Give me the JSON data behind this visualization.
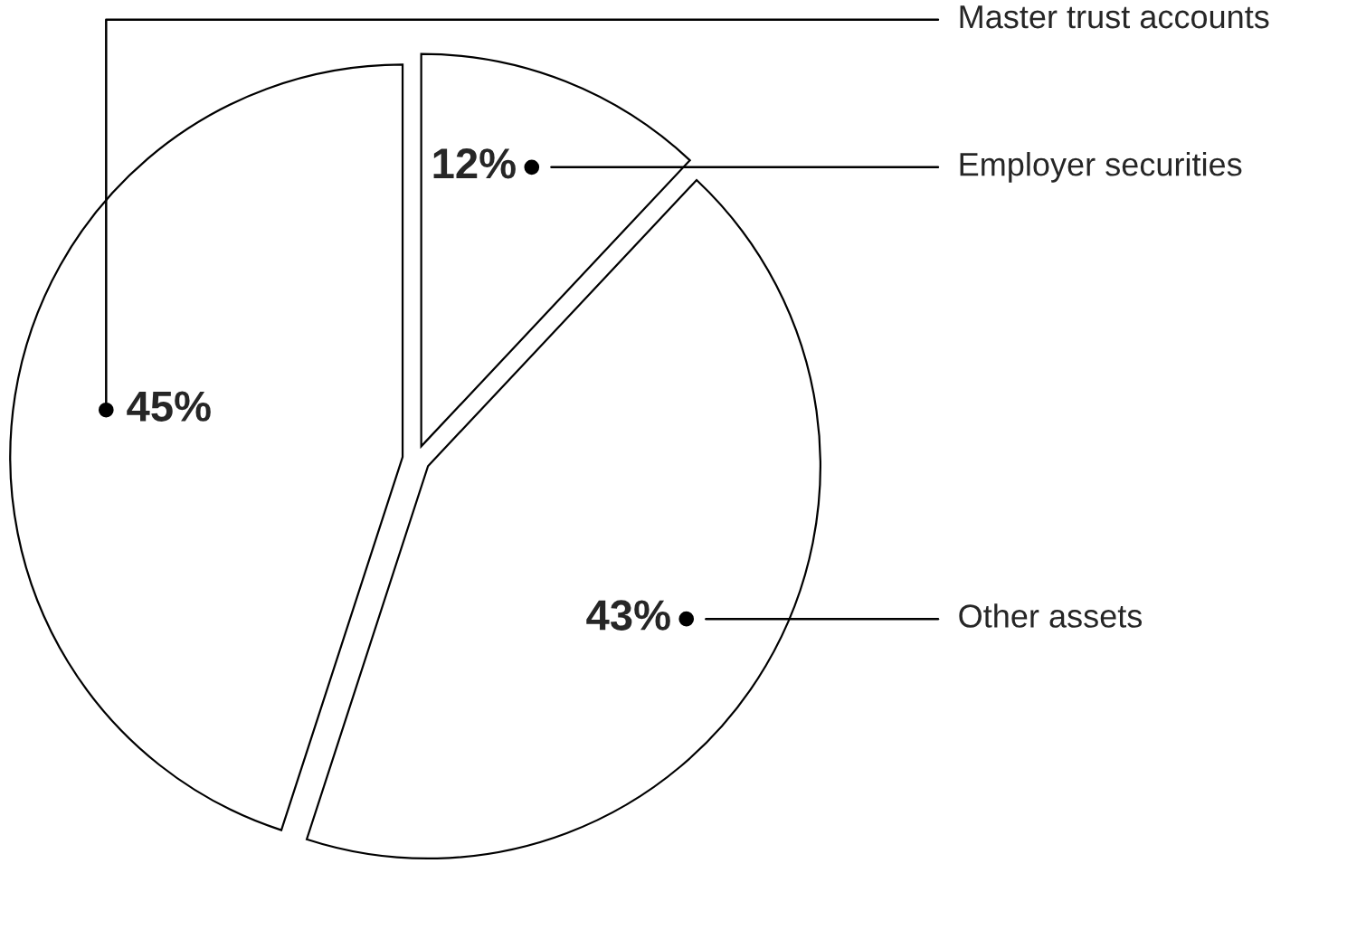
{
  "chart_data": {
    "type": "pie",
    "categories": [
      "Employer securities",
      "Other assets",
      "Master trust accounts"
    ],
    "values": [
      12,
      43,
      45
    ],
    "colors": [
      "#ffffff",
      "#ffffff",
      "#ffffff"
    ],
    "value_labels": [
      "12%",
      "43%",
      "45%"
    ]
  }
}
